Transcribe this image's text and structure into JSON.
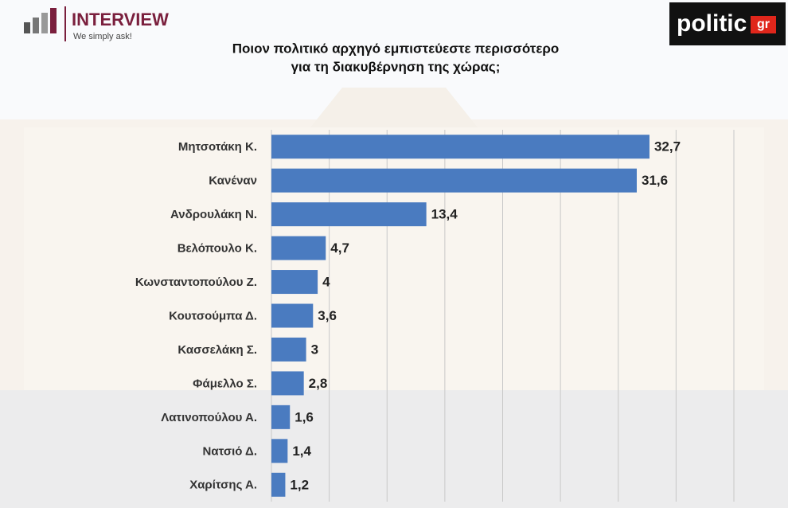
{
  "header": {
    "brand": "INTERVIEW",
    "tagline": "We simply ask!",
    "source_logo": "politic",
    "source_logo_suffix": "gr"
  },
  "chart_data": {
    "type": "hbar",
    "title": [
      "Ποιον πολιτικό αρχηγό εμπιστεύεστε περισσότερο",
      "για τη διακυβέρνηση της χώρας;"
    ],
    "categories": [
      "Μητσοτάκη Κ.",
      "Κανέναν",
      "Ανδρουλάκη Ν.",
      "Βελόπουλο Κ.",
      "Κωνσταντοπούλου Ζ.",
      "Κουτσούμπα Δ.",
      "Κασσελάκη Σ.",
      "Φάμελλο Σ.",
      "Λατινοπούλου Α.",
      "Νατσιό Δ.",
      "Χαρίτσης Α."
    ],
    "values": [
      32.7,
      31.6,
      13.4,
      4.7,
      4,
      3.6,
      3,
      2.8,
      1.6,
      1.4,
      1.2
    ],
    "value_labels": [
      "32,7",
      "31,6",
      "13,4",
      "4,7",
      "4",
      "3,6",
      "3",
      "2,8",
      "1,6",
      "1,4",
      "1,2"
    ],
    "color": "#4a7bc0",
    "xlim": [
      0,
      40
    ],
    "xticks": [
      0,
      5,
      10,
      15,
      20,
      25,
      30,
      35,
      40
    ],
    "grid": true
  }
}
